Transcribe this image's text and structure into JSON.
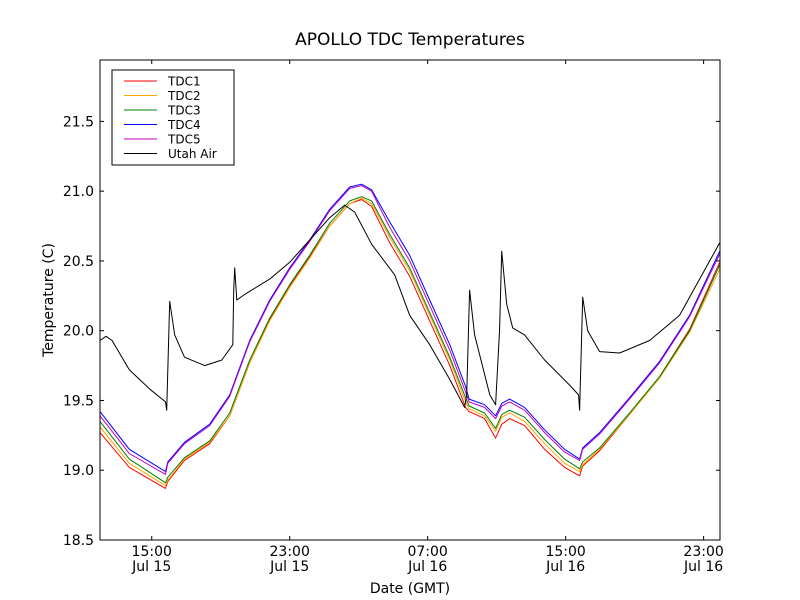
{
  "chart_data": {
    "type": "line",
    "title": "APOLLO TDC Temperatures",
    "xlabel": "Date (GMT)",
    "ylabel": "Temperature (C)",
    "x_unit": "hours since Jul 15 00:00 GMT",
    "xlim": [
      12.0,
      47.95
    ],
    "ylim": [
      18.5,
      21.94
    ],
    "grid": false,
    "legend_position": "top-left",
    "x_ticks": [
      {
        "value": 15,
        "label_time": "15:00",
        "label_date": "Jul 15"
      },
      {
        "value": 23,
        "label_time": "23:00",
        "label_date": "Jul 15"
      },
      {
        "value": 31,
        "label_time": "07:00",
        "label_date": "Jul 16"
      },
      {
        "value": 39,
        "label_time": "15:00",
        "label_date": "Jul 16"
      },
      {
        "value": 47,
        "label_time": "23:00",
        "label_date": "Jul 16"
      }
    ],
    "y_ticks": [
      {
        "value": 18.5,
        "label": "18.5"
      },
      {
        "value": 19.0,
        "label": "19.0"
      },
      {
        "value": 19.5,
        "label": "19.5"
      },
      {
        "value": 20.0,
        "label": "20.0"
      },
      {
        "value": 20.5,
        "label": "20.5"
      },
      {
        "value": 21.0,
        "label": "21.0"
      },
      {
        "value": 21.5,
        "label": "21.5"
      }
    ],
    "tdc_x": [
      12.0,
      13.7,
      15.8,
      15.93,
      16.9,
      18.36,
      19.52,
      20.68,
      21.84,
      23.0,
      24.16,
      25.32,
      26.48,
      27.17,
      27.75,
      28.8,
      29.96,
      31.12,
      32.28,
      33.2,
      33.4,
      34.3,
      34.94,
      35.3,
      35.75,
      36.62,
      37.78,
      38.94,
      39.81,
      39.99,
      40.97,
      42.71,
      44.45,
      46.19,
      47.93
    ],
    "series": [
      {
        "name": "TDC1",
        "color": "#ff0000",
        "values": [
          19.27,
          19.02,
          18.87,
          18.92,
          19.07,
          19.19,
          19.39,
          19.77,
          20.08,
          20.32,
          20.53,
          20.75,
          20.91,
          20.94,
          20.89,
          20.63,
          20.39,
          20.07,
          19.75,
          19.45,
          19.42,
          19.37,
          19.23,
          19.33,
          19.37,
          19.32,
          19.15,
          19.02,
          18.96,
          19.03,
          19.14,
          19.4,
          19.67,
          20.01,
          20.49
        ]
      },
      {
        "name": "TDC2",
        "color": "#ffa500",
        "values": [
          19.31,
          19.05,
          18.89,
          18.93,
          19.08,
          19.2,
          19.39,
          19.77,
          20.07,
          20.31,
          20.52,
          20.75,
          20.91,
          20.95,
          20.91,
          20.67,
          20.43,
          20.11,
          19.79,
          19.49,
          19.44,
          19.39,
          19.28,
          19.38,
          19.41,
          19.35,
          19.19,
          19.05,
          18.99,
          19.04,
          19.15,
          19.4,
          19.66,
          19.99,
          20.44
        ]
      },
      {
        "name": "TDC3",
        "color": "#008000",
        "values": [
          19.35,
          19.08,
          18.91,
          18.95,
          19.09,
          19.21,
          19.41,
          19.79,
          20.09,
          20.33,
          20.54,
          20.77,
          20.93,
          20.96,
          20.93,
          20.69,
          20.45,
          20.13,
          19.81,
          19.52,
          19.46,
          19.41,
          19.3,
          19.4,
          19.43,
          19.38,
          19.22,
          19.08,
          19.01,
          19.06,
          19.16,
          19.41,
          19.67,
          20.0,
          20.47
        ]
      },
      {
        "name": "TDC4",
        "color": "#0000ff",
        "values": [
          19.42,
          19.15,
          18.99,
          19.06,
          19.2,
          19.33,
          19.54,
          19.93,
          20.22,
          20.45,
          20.65,
          20.87,
          21.03,
          21.05,
          21.01,
          20.78,
          20.54,
          20.22,
          19.9,
          19.6,
          19.51,
          19.47,
          19.39,
          19.48,
          19.51,
          19.45,
          19.29,
          19.15,
          19.08,
          19.16,
          19.27,
          19.52,
          19.78,
          20.11,
          20.57
        ]
      },
      {
        "name": "TDC5",
        "color": "#bf00bf",
        "values": [
          19.39,
          19.12,
          18.97,
          19.05,
          19.19,
          19.32,
          19.53,
          19.92,
          20.21,
          20.44,
          20.64,
          20.86,
          21.02,
          21.04,
          21.0,
          20.74,
          20.5,
          20.18,
          19.86,
          19.56,
          19.49,
          19.45,
          19.37,
          19.46,
          19.49,
          19.43,
          19.27,
          19.13,
          19.07,
          19.15,
          19.26,
          19.51,
          19.77,
          20.1,
          20.55
        ]
      },
      {
        "name": "Utah Air",
        "color": "#000000",
        "x": [
          12.0,
          12.35,
          12.7,
          13.7,
          14.9,
          15.8,
          15.87,
          16.04,
          16.33,
          16.9,
          18.07,
          19.06,
          19.7,
          19.75,
          19.81,
          19.93,
          20.39,
          21.84,
          23.0,
          24.16,
          25.32,
          26.19,
          26.77,
          27.75,
          29.09,
          29.96,
          31.12,
          32.28,
          33.14,
          33.26,
          33.43,
          33.72,
          34.6,
          34.94,
          35.17,
          35.29,
          35.58,
          35.93,
          36.62,
          37.78,
          39.23,
          39.75,
          39.81,
          39.99,
          40.28,
          40.97,
          42.13,
          43.87,
          45.61,
          46.77,
          47.93
        ],
        "values": [
          19.93,
          19.96,
          19.93,
          19.72,
          19.58,
          19.49,
          19.43,
          20.21,
          19.97,
          19.81,
          19.75,
          19.79,
          19.9,
          20.29,
          20.45,
          20.22,
          20.26,
          20.37,
          20.49,
          20.65,
          20.81,
          20.9,
          20.85,
          20.62,
          20.4,
          20.11,
          19.9,
          19.65,
          19.45,
          19.54,
          20.29,
          19.97,
          19.54,
          19.47,
          20.01,
          20.57,
          20.19,
          20.02,
          19.97,
          19.79,
          19.61,
          19.54,
          19.43,
          20.24,
          20.0,
          19.85,
          19.84,
          19.93,
          20.11,
          20.37,
          20.63
        ]
      }
    ]
  }
}
